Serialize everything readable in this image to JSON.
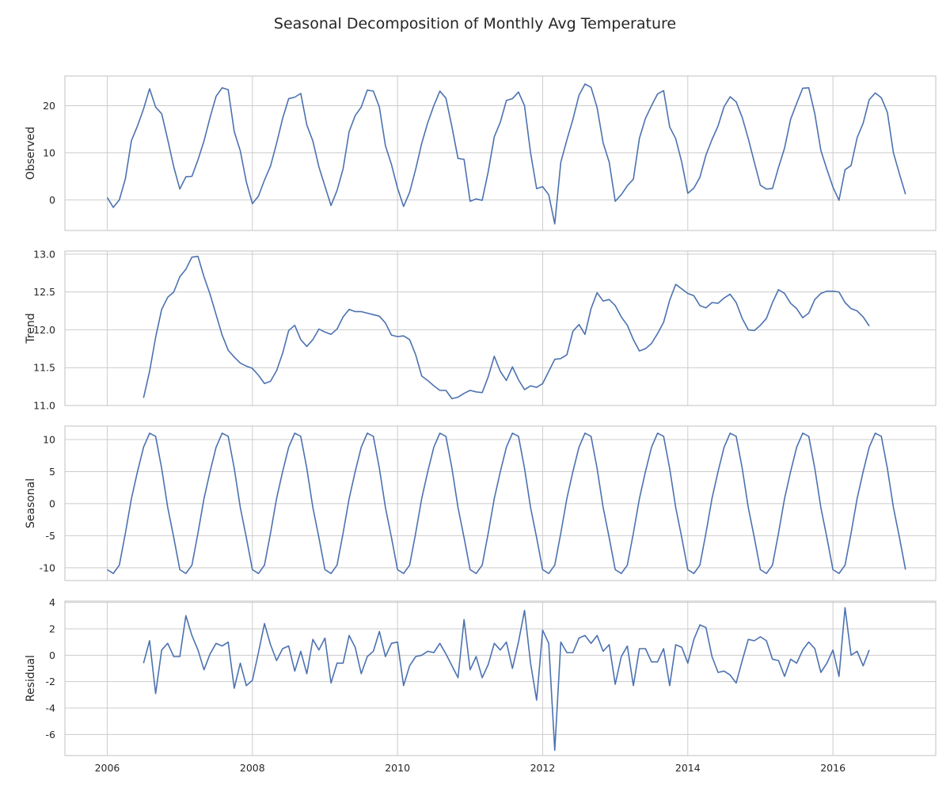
{
  "title": "Seasonal Decomposition of Monthly Avg Temperature",
  "chart_data": [
    {
      "type": "line",
      "ylabel": "Observed",
      "x_start": "2006-01",
      "x_ticks": [
        "2006",
        "2008",
        "2010",
        "2012",
        "2014",
        "2016"
      ],
      "xlim": [
        "2005-06",
        "2017-06"
      ],
      "y_ticks": [
        0,
        10,
        20
      ],
      "ylim": [
        -6.5,
        26.3
      ],
      "grid": true,
      "values": [
        0.5,
        -1.6,
        0.0,
        4.5,
        12.6,
        15.7,
        19.3,
        23.6,
        19.7,
        18.3,
        12.8,
        7.0,
        2.3,
        4.9,
        5.0,
        8.5,
        12.5,
        17.5,
        22.0,
        23.8,
        23.4,
        14.5,
        10.4,
        3.8,
        -0.8,
        0.8,
        4.2,
        7.2,
        12.0,
        17.3,
        21.5,
        21.8,
        22.6,
        15.9,
        12.5,
        7.0,
        2.9,
        -1.2,
        2.0,
        6.6,
        14.5,
        17.9,
        19.7,
        23.3,
        23.1,
        19.7,
        11.5,
        7.5,
        2.5,
        -1.4,
        1.6,
        6.5,
        12.0,
        16.4,
        20.0,
        23.1,
        21.6,
        15.5,
        8.8,
        8.6,
        -0.3,
        0.2,
        -0.1,
        6.0,
        13.4,
        16.5,
        21.1,
        21.5,
        22.9,
        20.0,
        10.0,
        2.4,
        2.8,
        1.1,
        -5.1,
        8.0,
        12.7,
        17.1,
        22.2,
        24.6,
        23.9,
        19.6,
        12.1,
        8.0,
        -0.3,
        1.1,
        3.0,
        4.4,
        13.1,
        17.3,
        20.0,
        22.5,
        23.2,
        15.5,
        13.0,
        8.0,
        1.4,
        2.5,
        4.8,
        9.5,
        12.8,
        15.7,
        19.8,
        21.9,
        20.8,
        17.5,
        13.0,
        8.0,
        3.1,
        2.3,
        2.4,
        6.9,
        11.0,
        17.1,
        20.5,
        23.7,
        23.8,
        18.3,
        10.5,
        6.5,
        2.7,
        -0.1,
        6.4,
        7.3,
        13.2,
        16.3,
        21.3,
        22.7,
        21.7,
        18.6,
        10.0,
        5.5,
        1.2
      ]
    },
    {
      "type": "line",
      "ylabel": "Trend",
      "x_start": "2006-07",
      "x_ticks": [
        "2006",
        "2008",
        "2010",
        "2012",
        "2014",
        "2016"
      ],
      "xlim": [
        "2005-06",
        "2017-06"
      ],
      "y_ticks": [
        11.0,
        11.5,
        12.0,
        12.5,
        13.0
      ],
      "ylim": [
        11.0,
        13.04
      ],
      "grid": true,
      "values": [
        11.1,
        11.45,
        11.9,
        12.27,
        12.43,
        12.5,
        12.7,
        12.8,
        12.96,
        12.97,
        12.7,
        12.47,
        12.2,
        11.93,
        11.73,
        11.64,
        11.56,
        11.52,
        11.49,
        11.4,
        11.29,
        11.32,
        11.46,
        11.69,
        11.99,
        12.06,
        11.87,
        11.78,
        11.87,
        12.01,
        11.97,
        11.94,
        12.01,
        12.17,
        12.27,
        12.24,
        12.24,
        12.22,
        12.2,
        12.18,
        12.09,
        11.93,
        11.91,
        11.92,
        11.87,
        11.67,
        11.39,
        11.33,
        11.26,
        11.2,
        11.2,
        11.09,
        11.11,
        11.16,
        11.2,
        11.18,
        11.17,
        11.38,
        11.65,
        11.45,
        11.33,
        11.51,
        11.34,
        11.21,
        11.26,
        11.24,
        11.29,
        11.45,
        11.61,
        11.62,
        11.67,
        11.98,
        12.07,
        11.94,
        12.28,
        12.49,
        12.38,
        12.4,
        12.32,
        12.17,
        12.06,
        11.87,
        11.72,
        11.75,
        11.82,
        11.95,
        12.1,
        12.39,
        12.6,
        12.54,
        12.48,
        12.45,
        12.32,
        12.29,
        12.36,
        12.35,
        12.42,
        12.47,
        12.36,
        12.15,
        12.0,
        11.99,
        12.06,
        12.15,
        12.36,
        12.53,
        12.48,
        12.35,
        12.28,
        12.16,
        12.22,
        12.4,
        12.48,
        12.51,
        12.51,
        12.5,
        12.36,
        12.28,
        12.25,
        12.17,
        12.05
      ]
    },
    {
      "type": "line",
      "ylabel": "Seasonal",
      "x_start": "2006-01",
      "x_ticks": [
        "2006",
        "2008",
        "2010",
        "2012",
        "2014",
        "2016"
      ],
      "xlim": [
        "2005-06",
        "2017-06"
      ],
      "y_ticks": [
        -10,
        -5,
        0,
        5,
        10
      ],
      "ylim": [
        -12.0,
        12.1
      ],
      "grid": true,
      "values": [
        -10.3,
        -10.9,
        -9.6,
        -4.6,
        0.8,
        5.0,
        8.8,
        11.0,
        10.5,
        5.5,
        -0.6,
        -5.3,
        -10.3,
        -10.9,
        -9.6,
        -4.6,
        0.8,
        5.0,
        8.8,
        11.0,
        10.5,
        5.5,
        -0.6,
        -5.3,
        -10.3,
        -10.9,
        -9.6,
        -4.6,
        0.8,
        5.0,
        8.8,
        11.0,
        10.5,
        5.5,
        -0.6,
        -5.3,
        -10.3,
        -10.9,
        -9.6,
        -4.6,
        0.8,
        5.0,
        8.8,
        11.0,
        10.5,
        5.5,
        -0.6,
        -5.3,
        -10.3,
        -10.9,
        -9.6,
        -4.6,
        0.8,
        5.0,
        8.8,
        11.0,
        10.5,
        5.5,
        -0.6,
        -5.3,
        -10.3,
        -10.9,
        -9.6,
        -4.6,
        0.8,
        5.0,
        8.8,
        11.0,
        10.5,
        5.5,
        -0.6,
        -5.3,
        -10.3,
        -10.9,
        -9.6,
        -4.6,
        0.8,
        5.0,
        8.8,
        11.0,
        10.5,
        5.5,
        -0.6,
        -5.3,
        -10.3,
        -10.9,
        -9.6,
        -4.6,
        0.8,
        5.0,
        8.8,
        11.0,
        10.5,
        5.5,
        -0.6,
        -5.3,
        -10.3,
        -10.9,
        -9.6,
        -4.6,
        0.8,
        5.0,
        8.8,
        11.0,
        10.5,
        5.5,
        -0.6,
        -5.3,
        -10.3,
        -10.9,
        -9.6,
        -4.6,
        0.8,
        5.0,
        8.8,
        11.0,
        10.5,
        5.5,
        -0.6,
        -5.3,
        -10.3,
        -10.9,
        -9.6,
        -4.6,
        0.8,
        5.0,
        8.8,
        11.0,
        10.5,
        5.5,
        -0.6,
        -5.3,
        -10.3
      ]
    },
    {
      "type": "line",
      "ylabel": "Residual",
      "x_start": "2006-07",
      "x_ticks": [
        "2006",
        "2008",
        "2010",
        "2012",
        "2014",
        "2016"
      ],
      "xlim": [
        "2005-06",
        "2017-06"
      ],
      "y_ticks": [
        -6,
        -4,
        -2,
        0,
        2,
        4
      ],
      "ylim": [
        -7.6,
        4.1
      ],
      "grid": true,
      "values": [
        -0.6,
        1.1,
        -2.9,
        0.4,
        0.9,
        -0.1,
        -0.1,
        3.0,
        1.5,
        0.4,
        -1.1,
        0.1,
        0.9,
        0.7,
        1.0,
        -2.5,
        -0.6,
        -2.3,
        -1.9,
        0.2,
        2.4,
        0.8,
        -0.4,
        0.5,
        0.7,
        -1.2,
        0.3,
        -1.4,
        1.2,
        0.4,
        1.3,
        -2.1,
        -0.6,
        -0.6,
        1.5,
        0.6,
        -1.4,
        -0.1,
        0.3,
        1.8,
        -0.1,
        0.9,
        1.0,
        -2.3,
        -0.8,
        -0.1,
        0.0,
        0.3,
        0.2,
        0.9,
        0.1,
        -0.8,
        -1.7,
        2.7,
        -1.1,
        -0.1,
        -1.7,
        -0.7,
        0.9,
        0.4,
        1.0,
        -1.0,
        1.0,
        3.4,
        -0.6,
        -3.4,
        1.9,
        0.9,
        -7.2,
        1.0,
        0.2,
        0.2,
        1.3,
        1.5,
        0.9,
        1.5,
        0.3,
        0.8,
        -2.2,
        -0.1,
        0.7,
        -2.3,
        0.5,
        0.5,
        -0.5,
        -0.5,
        0.5,
        -2.3,
        0.8,
        0.6,
        -0.6,
        1.2,
        2.3,
        2.1,
        -0.1,
        -1.3,
        -1.2,
        -1.5,
        -2.1,
        -0.4,
        1.2,
        1.1,
        1.4,
        1.1,
        -0.3,
        -0.4,
        -1.6,
        -0.3,
        -0.6,
        0.4,
        1.0,
        0.5,
        -1.3,
        -0.6,
        0.4,
        -1.6,
        3.6,
        0.0,
        0.3,
        -0.8,
        0.4
      ]
    }
  ]
}
